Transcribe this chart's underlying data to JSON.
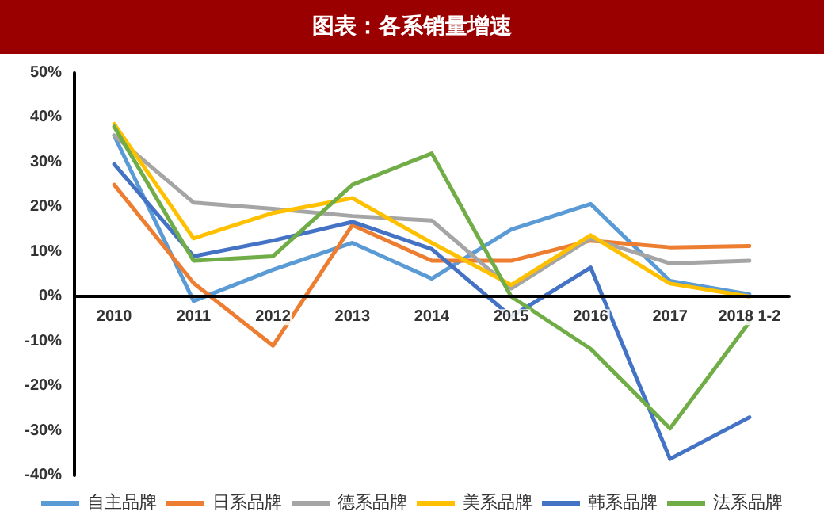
{
  "chart_data": {
    "type": "line",
    "title": "图表：各系销量增速",
    "categories": [
      "2010",
      "2011",
      "2012",
      "2013",
      "2014",
      "2015",
      "2016",
      "2017",
      "2018 1-2"
    ],
    "series": [
      {
        "name": "自主品牌",
        "color": "#5b9bd5",
        "values": [
          36,
          -1,
          6,
          12,
          4,
          15,
          20.7,
          3.5,
          0.5
        ]
      },
      {
        "name": "日系品牌",
        "color": "#ed7d31",
        "values": [
          25,
          3,
          -11,
          16,
          8,
          8,
          12.5,
          11,
          11.3
        ]
      },
      {
        "name": "德系品牌",
        "color": "#a5a5a5",
        "values": [
          36,
          21,
          19.6,
          18,
          17,
          1.8,
          13,
          7.4,
          8
        ]
      },
      {
        "name": "美系品牌",
        "color": "#ffc000",
        "values": [
          38.6,
          13,
          18.7,
          22,
          12,
          2.6,
          13.7,
          2.9,
          0
        ]
      },
      {
        "name": "韩系品牌",
        "color": "#4472c4",
        "values": [
          29.6,
          9,
          12.5,
          16.7,
          10.6,
          -4.5,
          6.5,
          -36.3,
          -27
        ]
      },
      {
        "name": "法系品牌",
        "color": "#70ad47",
        "values": [
          38,
          8,
          9,
          25,
          32,
          0,
          -11.7,
          -29.5,
          -5.7
        ]
      }
    ],
    "ylim": [
      -40,
      50
    ],
    "yticks": [
      {
        "value": -40,
        "label": "-40%"
      },
      {
        "value": -30,
        "label": "-30%"
      },
      {
        "value": -20,
        "label": "-20%"
      },
      {
        "value": -10,
        "label": "-10%"
      },
      {
        "value": 0,
        "label": "0%"
      },
      {
        "value": 10,
        "label": "10%"
      },
      {
        "value": 20,
        "label": "20%"
      },
      {
        "value": 30,
        "label": "30%"
      },
      {
        "value": 40,
        "label": "40%"
      },
      {
        "value": 50,
        "label": "50%"
      }
    ],
    "grid": false,
    "legend": "bottom",
    "marker": "none",
    "line_style": "solid"
  }
}
